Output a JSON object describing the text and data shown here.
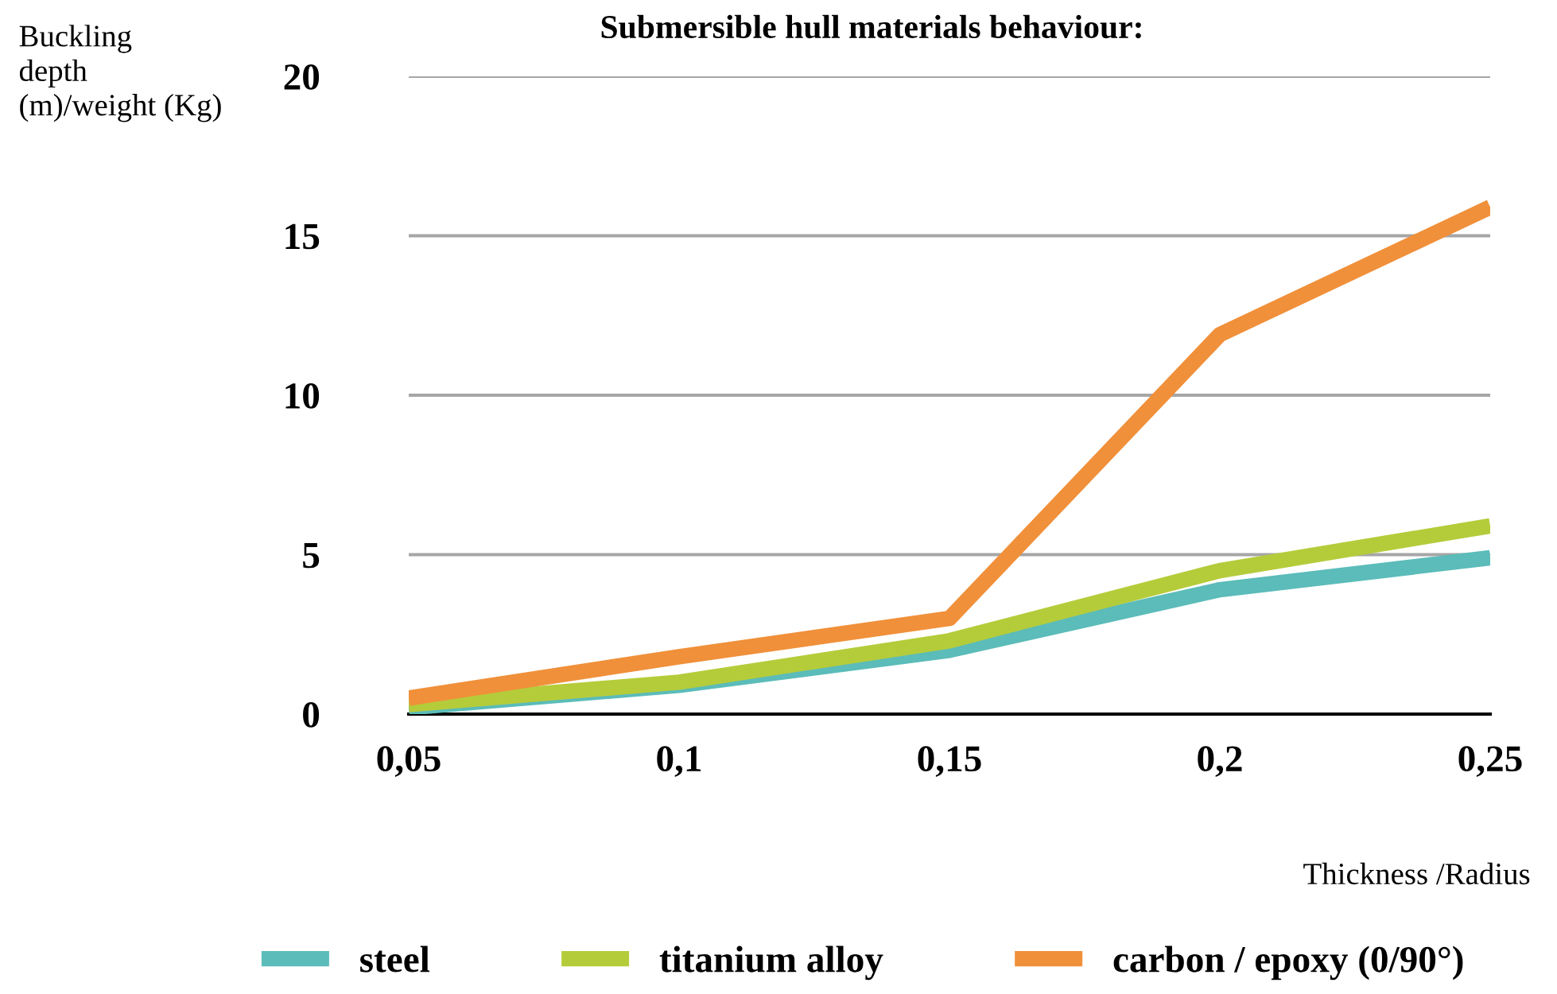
{
  "chart_data": {
    "type": "line",
    "title": "Submersible hull materials behaviour:",
    "xlabel": "Thickness /Radius",
    "ylabel": "Buckling\ndepth\n(m)/weight (Kg)",
    "categories": [
      "0,05",
      "0,1",
      "0,15",
      "0,2",
      "0,25"
    ],
    "series": [
      {
        "name": "steel",
        "color": "#5bbcb9",
        "values": [
          0.2,
          0.9,
          2.0,
          3.9,
          4.9
        ]
      },
      {
        "name": "titanium alloy",
        "color": "#b5cc3a",
        "values": [
          0.3,
          1.0,
          2.3,
          4.5,
          5.9
        ]
      },
      {
        "name": "carbon / epoxy (0/90°)",
        "color": "#f0903a",
        "values": [
          0.5,
          1.8,
          3.0,
          11.9,
          15.9
        ]
      }
    ],
    "ylim": [
      0,
      20
    ],
    "yticks": [
      0,
      5,
      10,
      15,
      20
    ],
    "grid": "y",
    "legend": "bottom",
    "marker": "none",
    "line_style": "solid"
  }
}
